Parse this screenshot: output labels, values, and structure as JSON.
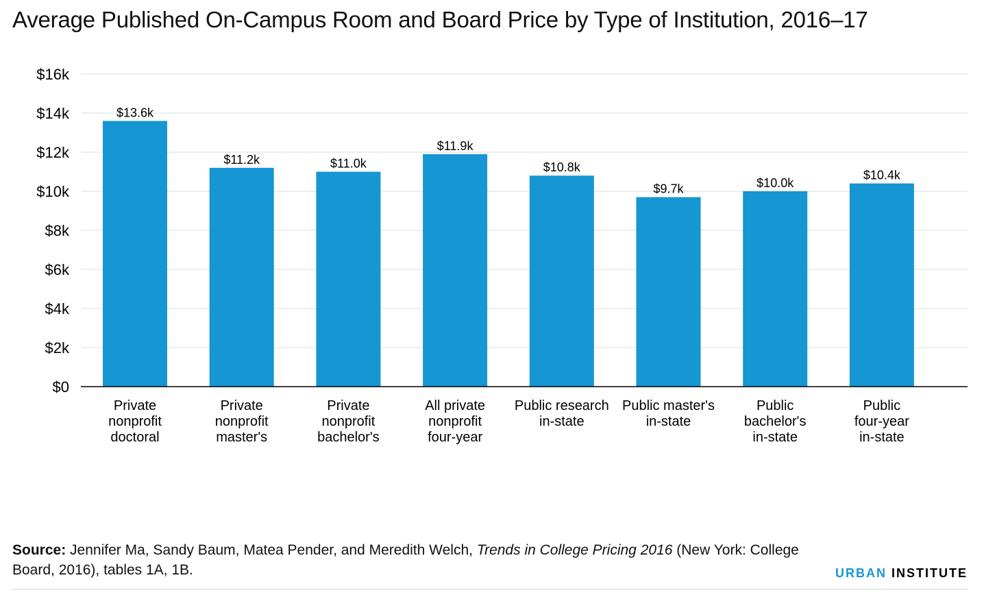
{
  "chart_data": {
    "type": "bar",
    "title": "Average Published On-Campus Room and Board Price by Type of Institution, 2016–17",
    "categories": [
      [
        "Private",
        "nonprofit",
        "doctoral"
      ],
      [
        "Private",
        "nonprofit",
        "master's"
      ],
      [
        "Private",
        "nonprofit",
        "bachelor's"
      ],
      [
        "All private",
        "nonprofit",
        "four-year"
      ],
      [
        "Public research",
        "in-state"
      ],
      [
        "Public master's",
        "in-state"
      ],
      [
        "Public",
        "bachelor's",
        "in-state"
      ],
      [
        "Public",
        "four-year",
        "in-state"
      ]
    ],
    "values": [
      13.6,
      11.2,
      11.0,
      11.9,
      10.8,
      9.7,
      10.0,
      10.4
    ],
    "data_labels": [
      "$13.6k",
      "$11.2k",
      "$11.0k",
      "$11.9k",
      "$10.8k",
      "$9.7k",
      "$10.0k",
      "$10.4k"
    ],
    "y_ticks": [
      0,
      2,
      4,
      6,
      8,
      10,
      12,
      14,
      16
    ],
    "y_tick_labels": [
      "$0",
      "$2k",
      "$4k",
      "$6k",
      "$8k",
      "$10k",
      "$12k",
      "$14k",
      "$16k"
    ],
    "ylim": [
      0,
      16
    ],
    "xlabel": "",
    "ylabel": "",
    "grid": true,
    "colors": {
      "bar": "#1696d2",
      "grid": "#dedede",
      "axis": "#000000"
    }
  },
  "source": {
    "label": "Source:",
    "text_before": "Jennifer Ma, Sandy Baum, Matea Pender, and Meredith Welch,",
    "book_title": "Trends in College Pricing 2016",
    "text_after": "(New York: College Board, 2016), tables 1A, 1B."
  },
  "brand": {
    "first": "URBAN",
    "second": "INSTITUTE",
    "first_color": "#1696d2",
    "second_color": "#000000"
  }
}
